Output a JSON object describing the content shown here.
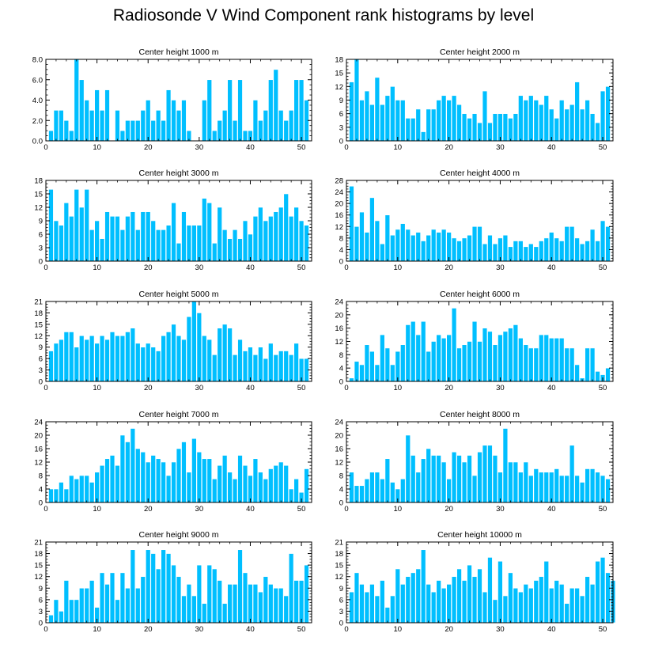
{
  "title": "Radiosonde V Wind Component rank histograms by level",
  "colors": {
    "bar": "#00bfff",
    "bar_stroke": "#ffffff",
    "axis": "#000000"
  },
  "chart_data": [
    {
      "type": "bar",
      "title": "Center height 1000 m",
      "xlim": [
        0,
        52
      ],
      "ylim": [
        0,
        8
      ],
      "xticks": [
        0,
        10,
        20,
        30,
        40,
        50
      ],
      "yticks": [
        0,
        2,
        4,
        6,
        8
      ],
      "ytick_labels": [
        "0.0",
        "2.0",
        "4.0",
        "6.0",
        "8.0"
      ],
      "values": [
        1,
        3,
        3,
        2,
        1,
        8,
        6,
        4,
        3,
        5,
        3,
        5,
        0,
        3,
        1,
        2,
        2,
        2,
        3,
        4,
        2,
        3,
        2,
        5,
        4,
        3,
        4,
        1,
        0,
        0,
        4,
        6,
        1,
        2,
        3,
        6,
        2,
        6,
        1,
        1,
        4,
        2,
        3,
        6,
        7,
        3,
        2,
        3,
        6,
        6,
        4
      ]
    },
    {
      "type": "bar",
      "title": "Center height 2000 m",
      "xlim": [
        0,
        52
      ],
      "ylim": [
        0,
        18
      ],
      "xticks": [
        0,
        10,
        20,
        30,
        40,
        50
      ],
      "yticks": [
        0,
        3,
        6,
        9,
        12,
        15,
        18
      ],
      "ytick_labels": [
        "0",
        "3",
        "6",
        "9",
        "12",
        "15",
        "18"
      ],
      "values": [
        13,
        18,
        9,
        11,
        8,
        14,
        8,
        10,
        12,
        9,
        9,
        5,
        5,
        7,
        2,
        7,
        7,
        9,
        10,
        9,
        10,
        8,
        6,
        5,
        6,
        4,
        11,
        4,
        6,
        6,
        6,
        5,
        6,
        10,
        9,
        10,
        9,
        8,
        10,
        7,
        5,
        9,
        7,
        8,
        13,
        7,
        9,
        6,
        4,
        11,
        12
      ]
    },
    {
      "type": "bar",
      "title": "Center height 3000 m",
      "xlim": [
        0,
        52
      ],
      "ylim": [
        0,
        18
      ],
      "xticks": [
        0,
        10,
        20,
        30,
        40,
        50
      ],
      "yticks": [
        0,
        3,
        6,
        9,
        12,
        15,
        18
      ],
      "ytick_labels": [
        "0",
        "3",
        "6",
        "9",
        "12",
        "15",
        "18"
      ],
      "values": [
        16,
        9,
        8,
        13,
        10,
        16,
        12,
        16,
        7,
        9,
        5,
        11,
        10,
        10,
        7,
        10,
        11,
        7,
        11,
        11,
        9,
        7,
        7,
        8,
        13,
        4,
        11,
        8,
        8,
        8,
        14,
        13,
        4,
        12,
        7,
        5,
        7,
        5,
        9,
        6,
        10,
        12,
        9,
        10,
        11,
        12,
        15,
        10,
        12,
        9,
        8
      ]
    },
    {
      "type": "bar",
      "title": "Center height 4000 m",
      "xlim": [
        0,
        52
      ],
      "ylim": [
        0,
        28
      ],
      "xticks": [
        0,
        10,
        20,
        30,
        40,
        50
      ],
      "yticks": [
        0,
        4,
        8,
        12,
        16,
        20,
        24,
        28
      ],
      "ytick_labels": [
        "0",
        "4",
        "8",
        "12",
        "16",
        "20",
        "24",
        "28"
      ],
      "values": [
        26,
        12,
        17,
        10,
        22,
        14,
        6,
        16,
        9,
        11,
        13,
        11,
        9,
        10,
        7,
        9,
        11,
        10,
        11,
        10,
        8,
        7,
        8,
        9,
        12,
        12,
        6,
        9,
        6,
        8,
        9,
        5,
        7,
        7,
        5,
        6,
        5,
        7,
        8,
        10,
        8,
        7,
        12,
        12,
        8,
        6,
        7,
        11,
        7,
        14,
        12
      ]
    },
    {
      "type": "bar",
      "title": "Center height 5000 m",
      "xlim": [
        0,
        52
      ],
      "ylim": [
        0,
        21
      ],
      "xticks": [
        0,
        10,
        20,
        30,
        40,
        50
      ],
      "yticks": [
        0,
        3,
        6,
        9,
        12,
        15,
        18,
        21
      ],
      "ytick_labels": [
        "0",
        "3",
        "6",
        "9",
        "12",
        "15",
        "18",
        "21"
      ],
      "values": [
        8,
        10,
        11,
        13,
        13,
        9,
        12,
        11,
        12,
        10,
        12,
        11,
        13,
        12,
        12,
        13,
        14,
        10,
        9,
        10,
        9,
        8,
        12,
        13,
        15,
        12,
        11,
        17,
        21,
        18,
        12,
        11,
        7,
        14,
        15,
        14,
        7,
        11,
        8,
        9,
        7,
        9,
        6,
        10,
        7,
        8,
        8,
        7,
        10,
        6,
        6
      ]
    },
    {
      "type": "bar",
      "title": "Center height 6000 m",
      "xlim": [
        0,
        52
      ],
      "ylim": [
        0,
        24
      ],
      "xticks": [
        0,
        10,
        20,
        30,
        40,
        50
      ],
      "yticks": [
        0,
        4,
        8,
        12,
        16,
        20,
        24
      ],
      "ytick_labels": [
        "0",
        "4",
        "8",
        "12",
        "16",
        "20",
        "24"
      ],
      "values": [
        1,
        6,
        5,
        11,
        9,
        5,
        14,
        10,
        5,
        9,
        11,
        17,
        18,
        14,
        18,
        9,
        12,
        14,
        13,
        14,
        22,
        10,
        11,
        12,
        18,
        12,
        16,
        15,
        11,
        14,
        15,
        16,
        17,
        13,
        11,
        10,
        10,
        14,
        14,
        13,
        13,
        13,
        10,
        10,
        5,
        1,
        10,
        10,
        3,
        2,
        4
      ]
    },
    {
      "type": "bar",
      "title": "Center height 7000 m",
      "xlim": [
        0,
        52
      ],
      "ylim": [
        0,
        24
      ],
      "xticks": [
        0,
        10,
        20,
        30,
        40,
        50
      ],
      "yticks": [
        0,
        4,
        8,
        12,
        16,
        20,
        24
      ],
      "ytick_labels": [
        "0",
        "4",
        "8",
        "12",
        "16",
        "20",
        "24"
      ],
      "values": [
        4,
        4,
        6,
        4,
        8,
        7,
        8,
        8,
        6,
        9,
        11,
        13,
        14,
        11,
        20,
        18,
        22,
        16,
        15,
        12,
        14,
        13,
        12,
        8,
        12,
        16,
        18,
        9,
        19,
        15,
        13,
        13,
        7,
        11,
        14,
        9,
        7,
        14,
        11,
        8,
        13,
        9,
        7,
        10,
        11,
        12,
        11,
        4,
        7,
        3,
        10
      ]
    },
    {
      "type": "bar",
      "title": "Center height 8000 m",
      "xlim": [
        0,
        52
      ],
      "ylim": [
        0,
        24
      ],
      "xticks": [
        0,
        10,
        20,
        30,
        40,
        50
      ],
      "yticks": [
        0,
        4,
        8,
        12,
        16,
        20,
        24
      ],
      "ytick_labels": [
        "0",
        "4",
        "8",
        "12",
        "16",
        "20",
        "24"
      ],
      "values": [
        9,
        5,
        5,
        7,
        9,
        9,
        7,
        13,
        6,
        4,
        7,
        20,
        14,
        9,
        13,
        16,
        14,
        14,
        12,
        7,
        15,
        14,
        12,
        14,
        8,
        15,
        17,
        17,
        14,
        9,
        22,
        12,
        12,
        9,
        12,
        8,
        10,
        9,
        9,
        9,
        10,
        8,
        8,
        17,
        8,
        6,
        10,
        10,
        9,
        8,
        7
      ]
    },
    {
      "type": "bar",
      "title": "Center height 9000 m",
      "xlim": [
        0,
        52
      ],
      "ylim": [
        0,
        21
      ],
      "xticks": [
        0,
        10,
        20,
        30,
        40,
        50
      ],
      "yticks": [
        0,
        3,
        6,
        9,
        12,
        15,
        18,
        21
      ],
      "ytick_labels": [
        "0",
        "3",
        "6",
        "9",
        "12",
        "15",
        "18",
        "21"
      ],
      "values": [
        2,
        6,
        3,
        11,
        6,
        6,
        9,
        9,
        11,
        4,
        13,
        10,
        13,
        6,
        13,
        9,
        19,
        9,
        12,
        19,
        18,
        14,
        19,
        18,
        15,
        12,
        7,
        10,
        7,
        15,
        5,
        15,
        14,
        11,
        5,
        10,
        10,
        19,
        13,
        10,
        10,
        8,
        12,
        10,
        9,
        9,
        7,
        18,
        11,
        11,
        15
      ]
    },
    {
      "type": "bar",
      "title": "Center height 10000 m",
      "xlim": [
        0,
        52
      ],
      "ylim": [
        0,
        21
      ],
      "xticks": [
        0,
        10,
        20,
        30,
        40,
        50
      ],
      "yticks": [
        0,
        3,
        6,
        9,
        12,
        15,
        18,
        21
      ],
      "ytick_labels": [
        "0",
        "3",
        "6",
        "9",
        "12",
        "15",
        "18",
        "21"
      ],
      "values": [
        8,
        13,
        10,
        8,
        10,
        7,
        11,
        4,
        7,
        14,
        10,
        12,
        13,
        14,
        19,
        10,
        8,
        11,
        9,
        10,
        12,
        14,
        11,
        15,
        12,
        14,
        8,
        17,
        6,
        16,
        7,
        13,
        9,
        8,
        10,
        9,
        11,
        12,
        16,
        9,
        11,
        10,
        5,
        9,
        9,
        7,
        12,
        10,
        16,
        17,
        13,
        11
      ]
    }
  ]
}
